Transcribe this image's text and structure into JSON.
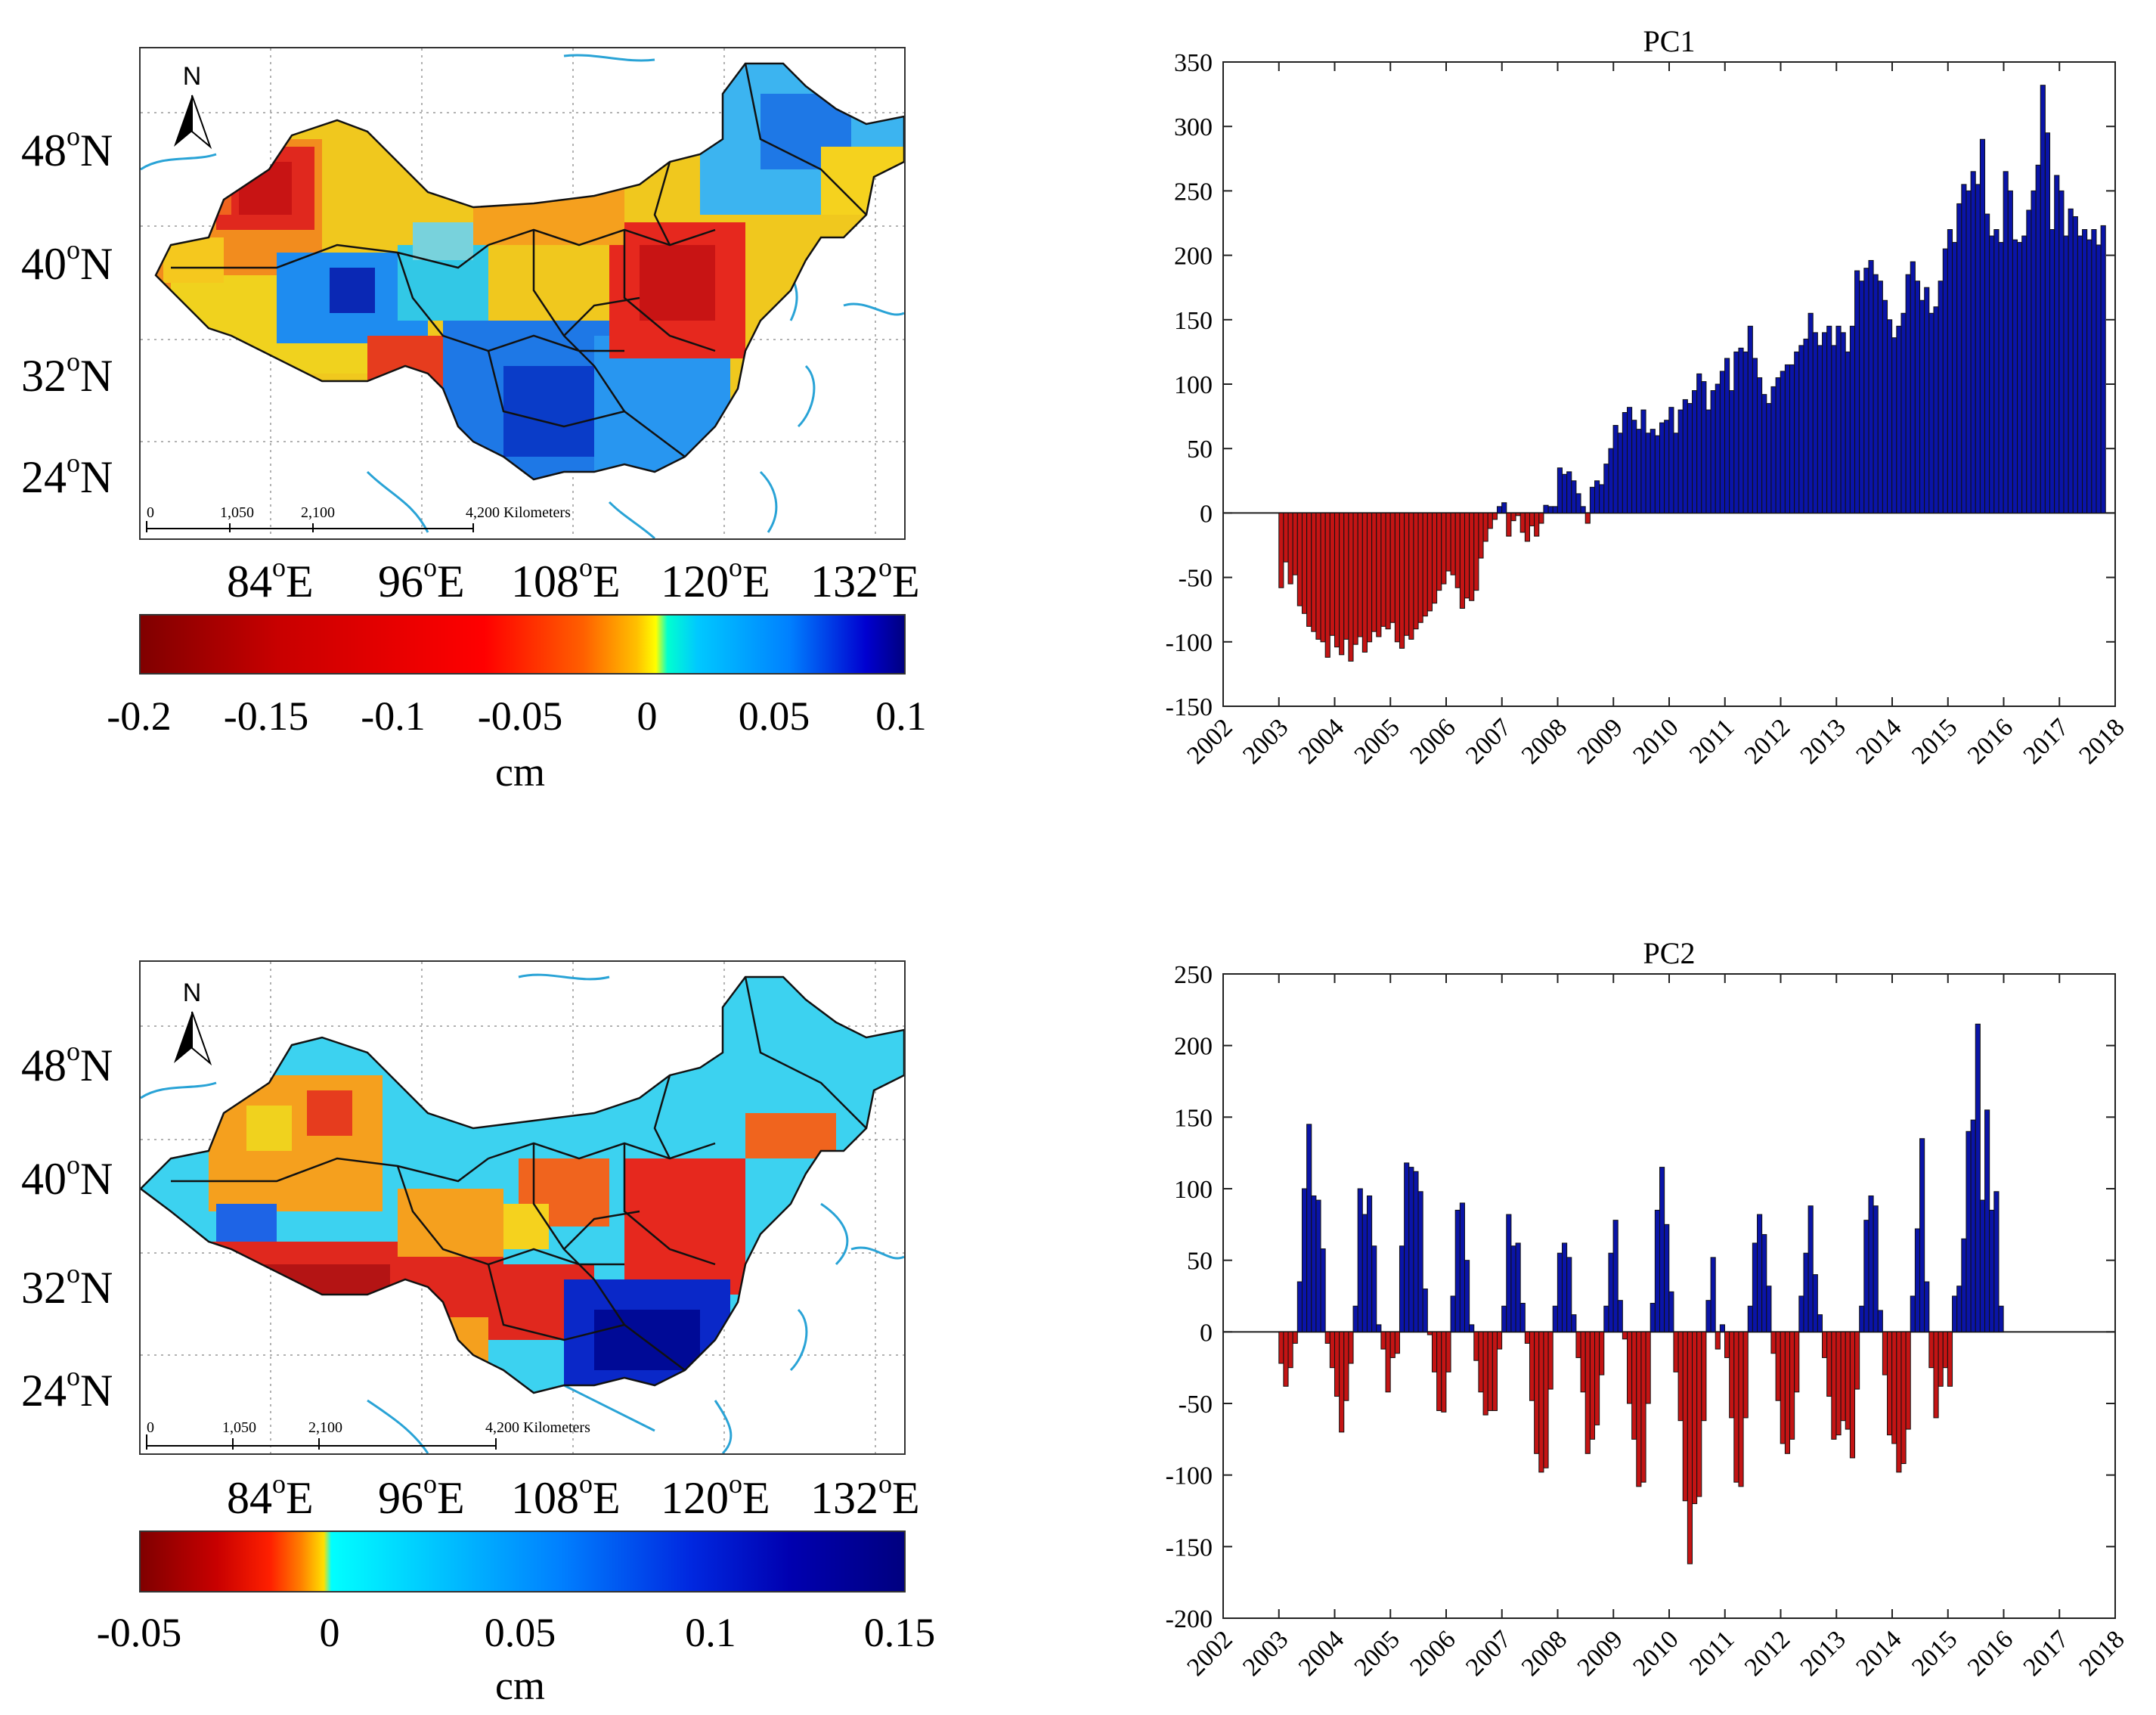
{
  "maps": [
    {
      "id": "map1",
      "north_label": "N",
      "lat_labels": [
        "48",
        "40",
        "32",
        "24"
      ],
      "lat_suffix": "N",
      "lon_labels": [
        "84",
        "96",
        "108",
        "120",
        "132"
      ],
      "lon_suffix": "E",
      "degree_mark": "o",
      "scale_labels": [
        "0",
        "1,050",
        "2,100",
        "4,200 Kilometers"
      ],
      "colorbar": {
        "ticks": [
          "-0.2",
          "-0.15",
          "-0.1",
          "-0.05",
          "0",
          "0.05",
          "0.1"
        ],
        "unit": "cm"
      }
    },
    {
      "id": "map2",
      "north_label": "N",
      "lat_labels": [
        "48",
        "40",
        "32",
        "24"
      ],
      "lat_suffix": "N",
      "lon_labels": [
        "84",
        "96",
        "108",
        "120",
        "132"
      ],
      "lon_suffix": "E",
      "degree_mark": "o",
      "scale_labels": [
        "0",
        "1,050",
        "2,100",
        "4,200 Kilometers"
      ],
      "colorbar": {
        "ticks": [
          "-0.05",
          "0",
          "0.05",
          "0.1",
          "0.15"
        ],
        "unit": "cm"
      }
    }
  ],
  "colors": {
    "positive_bar": "#0a14a8",
    "negative_bar": "#c41414",
    "map_border": "#333333",
    "coast": "#29a3d6"
  },
  "chart_data": [
    {
      "type": "bar",
      "title": "PC1",
      "xlabel": "",
      "ylabel": "",
      "xlim": [
        2002,
        2018
      ],
      "ylim": [
        -150,
        350
      ],
      "yticks": [
        350,
        300,
        250,
        200,
        150,
        100,
        50,
        0,
        -50,
        -100,
        -150
      ],
      "xticks": [
        "2002",
        "2003",
        "2004",
        "2005",
        "2006",
        "2007",
        "2008",
        "2009",
        "2010",
        "2011",
        "2012",
        "2013",
        "2014",
        "2015",
        "2016",
        "2017",
        "2018"
      ],
      "x_start": 2003.0,
      "x_step": 0.0833,
      "values": [
        -58,
        -38,
        -55,
        -48,
        -72,
        -78,
        -88,
        -92,
        -98,
        -100,
        -112,
        -95,
        -104,
        -110,
        -98,
        -115,
        -102,
        -96,
        -108,
        -100,
        -92,
        -96,
        -88,
        -90,
        -85,
        -100,
        -105,
        -95,
        -98,
        -90,
        -85,
        -80,
        -76,
        -70,
        -60,
        -55,
        -45,
        -48,
        -58,
        -74,
        -66,
        -68,
        -60,
        -35,
        -22,
        -12,
        -5,
        5,
        8,
        -18,
        -6,
        -2,
        -15,
        -22,
        -10,
        -18,
        -8,
        6,
        5,
        5,
        35,
        30,
        32,
        25,
        15,
        5,
        -8,
        20,
        25,
        22,
        38,
        50,
        68,
        62,
        78,
        82,
        72,
        65,
        80,
        62,
        65,
        60,
        70,
        72,
        82,
        62,
        80,
        88,
        85,
        95,
        108,
        102,
        80,
        95,
        100,
        110,
        120,
        95,
        125,
        128,
        125,
        145,
        120,
        105,
        92,
        85,
        98,
        105,
        110,
        115,
        115,
        125,
        130,
        135,
        155,
        140,
        130,
        140,
        145,
        130,
        145,
        140,
        125,
        145,
        188,
        180,
        190,
        196,
        185,
        180,
        165,
        150,
        136,
        145,
        155,
        185,
        195,
        180,
        165,
        175,
        155,
        160,
        180,
        205,
        220,
        210,
        240,
        255,
        250,
        265,
        255,
        290,
        232,
        215,
        220,
        210,
        265,
        250,
        212,
        210,
        215,
        235,
        250,
        270,
        332,
        295,
        220,
        262,
        250,
        215,
        236,
        230,
        215,
        220,
        212,
        220,
        208,
        223
      ]
    },
    {
      "type": "bar",
      "title": "PC2",
      "xlabel": "",
      "ylabel": "",
      "xlim": [
        2002,
        2018
      ],
      "ylim": [
        -200,
        250
      ],
      "yticks": [
        250,
        200,
        150,
        100,
        50,
        0,
        -50,
        -100,
        -150,
        -200
      ],
      "xticks": [
        "2002",
        "2003",
        "2004",
        "2005",
        "2006",
        "2007",
        "2008",
        "2009",
        "2010",
        "2011",
        "2012",
        "2013",
        "2014",
        "2015",
        "2016",
        "2017",
        "2018"
      ],
      "x_start": 2003.0,
      "x_step": 0.0833,
      "values": [
        -22,
        -38,
        -25,
        -8,
        35,
        100,
        145,
        95,
        92,
        58,
        -8,
        -25,
        -45,
        -70,
        -48,
        -22,
        18,
        100,
        82,
        95,
        60,
        5,
        -12,
        -42,
        -18,
        -15,
        60,
        118,
        115,
        112,
        98,
        30,
        -2,
        -28,
        -55,
        -56,
        -28,
        25,
        85,
        90,
        50,
        5,
        -20,
        -42,
        -58,
        -55,
        -55,
        -12,
        18,
        82,
        60,
        62,
        20,
        -8,
        -48,
        -85,
        -98,
        -95,
        -40,
        18,
        55,
        62,
        52,
        12,
        -18,
        -42,
        -85,
        -75,
        -65,
        -30,
        18,
        55,
        78,
        22,
        -5,
        -50,
        -75,
        -108,
        -105,
        -50,
        20,
        85,
        115,
        75,
        28,
        -28,
        -62,
        -118,
        -162,
        -120,
        -115,
        -62,
        22,
        52,
        -12,
        5,
        -18,
        -60,
        -105,
        -108,
        -60,
        18,
        62,
        82,
        68,
        32,
        -15,
        -48,
        -78,
        -85,
        -75,
        -42,
        25,
        55,
        88,
        40,
        12,
        -18,
        -45,
        -75,
        -72,
        -62,
        -68,
        -88,
        -40,
        18,
        78,
        95,
        88,
        15,
        -30,
        -72,
        -78,
        -98,
        -92,
        -68,
        25,
        72,
        135,
        35,
        -25,
        -60,
        -38,
        -25,
        -38,
        25,
        32,
        65,
        140,
        148,
        215,
        92,
        155,
        85,
        98,
        18
      ]
    }
  ]
}
